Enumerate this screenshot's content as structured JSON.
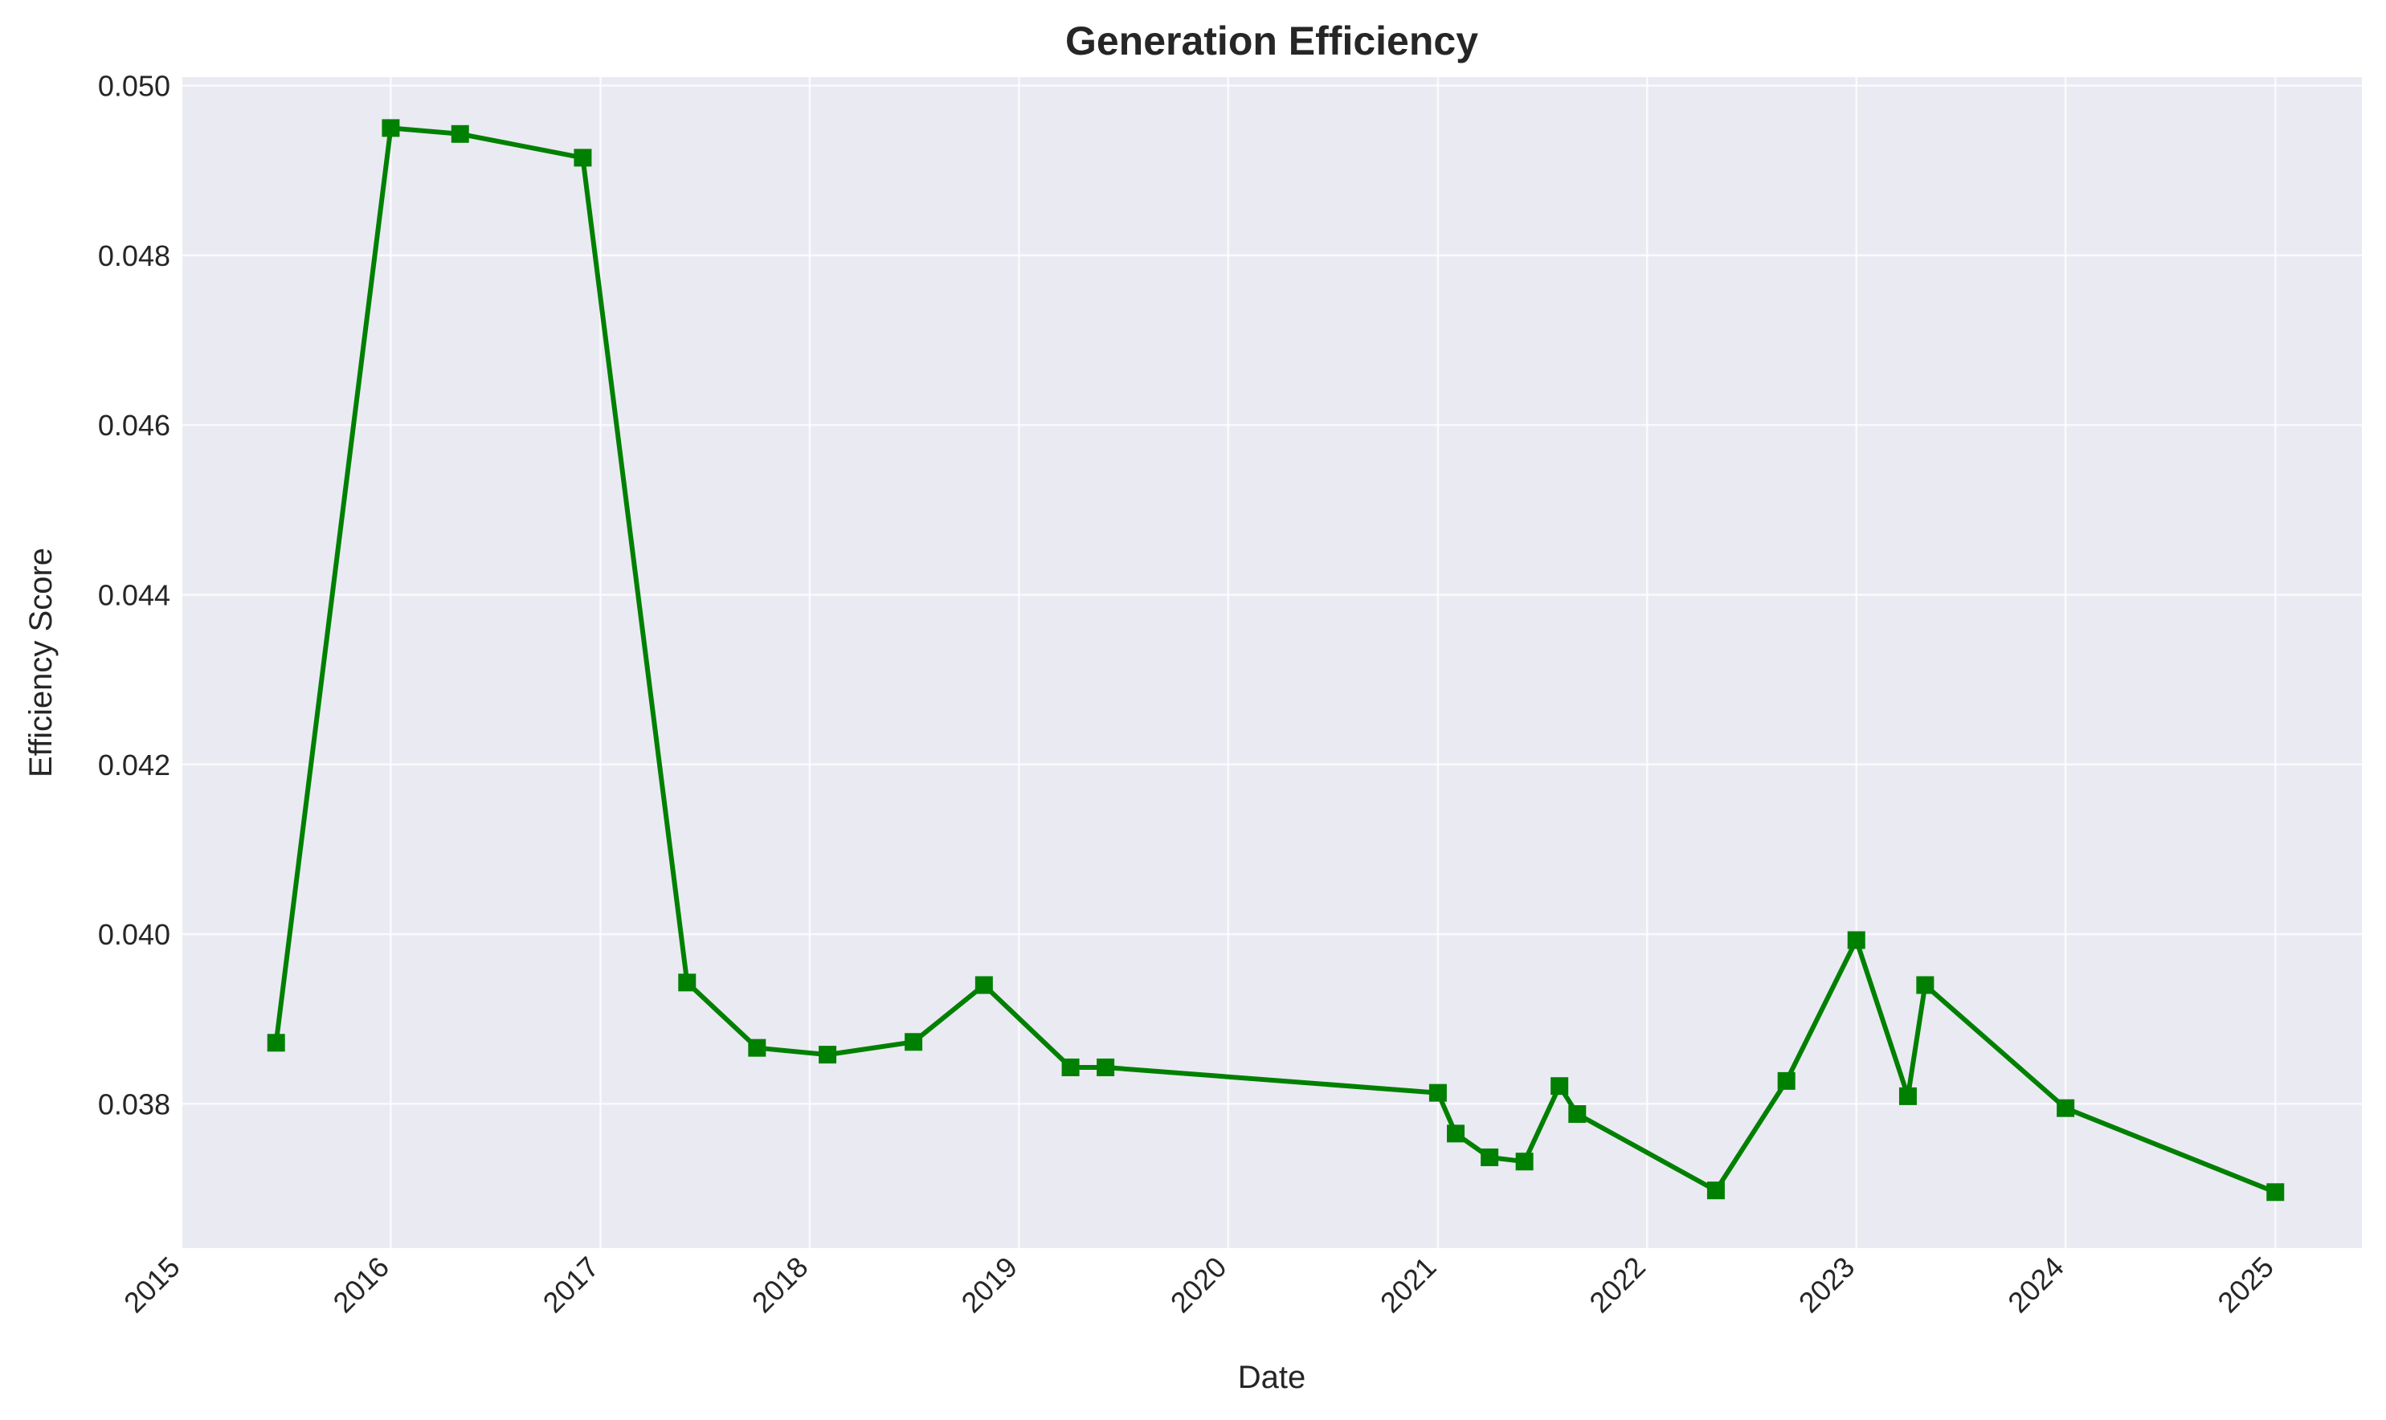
{
  "chart_data": {
    "type": "line",
    "title": "Generation Efficiency",
    "xlabel": "Date",
    "ylabel": "Efficiency Score",
    "x_ticks": [
      "2015",
      "2016",
      "2017",
      "2018",
      "2019",
      "2020",
      "2021",
      "2022",
      "2023",
      "2024",
      "2025"
    ],
    "y_ticks": [
      "0.038",
      "0.040",
      "0.042",
      "0.044",
      "0.046",
      "0.048",
      "0.050"
    ],
    "xlim": [
      "2015-01-01",
      "2025-06-01"
    ],
    "ylim": [
      0.0363,
      0.0501
    ],
    "grid": true,
    "background": "#eaeaf2",
    "series": [
      {
        "color": "#008000",
        "marker": "square",
        "points": [
          {
            "x": "2015-06-15",
            "y": 0.03872
          },
          {
            "x": "2016-01-01",
            "y": 0.0495
          },
          {
            "x": "2016-05-01",
            "y": 0.04943
          },
          {
            "x": "2016-12-01",
            "y": 0.04915
          },
          {
            "x": "2017-06-01",
            "y": 0.03943
          },
          {
            "x": "2017-10-01",
            "y": 0.03866
          },
          {
            "x": "2018-02-01",
            "y": 0.03858
          },
          {
            "x": "2018-07-01",
            "y": 0.03873
          },
          {
            "x": "2018-11-01",
            "y": 0.0394
          },
          {
            "x": "2019-04-01",
            "y": 0.03843
          },
          {
            "x": "2019-06-01",
            "y": 0.03843
          },
          {
            "x": "2021-01-01",
            "y": 0.03813
          },
          {
            "x": "2021-02-01",
            "y": 0.03765
          },
          {
            "x": "2021-04-01",
            "y": 0.03737
          },
          {
            "x": "2021-06-01",
            "y": 0.03732
          },
          {
            "x": "2021-08-01",
            "y": 0.03821
          },
          {
            "x": "2021-09-01",
            "y": 0.03788
          },
          {
            "x": "2022-05-01",
            "y": 0.03698
          },
          {
            "x": "2022-09-01",
            "y": 0.03827
          },
          {
            "x": "2023-01-01",
            "y": 0.03993
          },
          {
            "x": "2023-04-01",
            "y": 0.03809
          },
          {
            "x": "2023-05-01",
            "y": 0.0394
          },
          {
            "x": "2024-01-01",
            "y": 0.03795
          },
          {
            "x": "2025-01-01",
            "y": 0.03696
          }
        ]
      }
    ]
  }
}
